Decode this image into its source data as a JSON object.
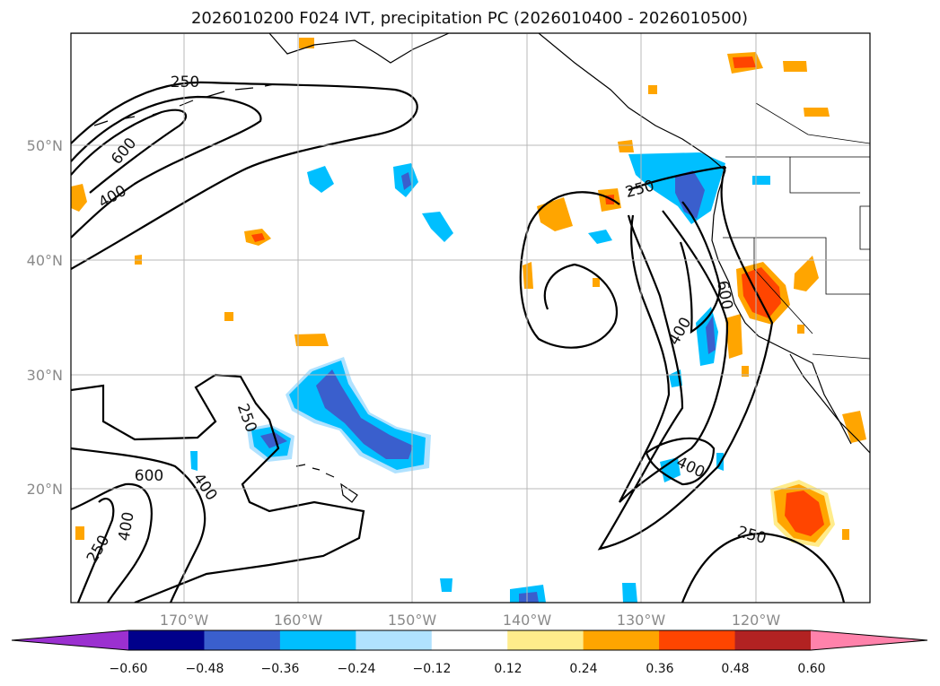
{
  "title": "2026010200 F024 IVT, precipitation PC (2026010400 - 2026010500)",
  "map": {
    "longitude_labels": [
      "170°W",
      "160°W",
      "150°W",
      "140°W",
      "130°W",
      "120°W"
    ],
    "latitude_labels": [
      "50°N",
      "40°N",
      "30°N",
      "20°N"
    ],
    "ivt_contour_labels": [
      "250",
      "600",
      "400",
      "250",
      "250",
      "600",
      "400",
      "250",
      "400",
      "400",
      "600",
      "400",
      "250"
    ]
  },
  "colorbar": {
    "ticks": [
      "−0.60",
      "−0.48",
      "−0.36",
      "−0.24",
      "−0.12",
      "0.12",
      "0.24",
      "0.36",
      "0.48",
      "0.60"
    ],
    "levels": [
      -0.6,
      -0.48,
      -0.36,
      -0.24,
      -0.12,
      0.12,
      0.24,
      0.36,
      0.48,
      0.6
    ],
    "colors": [
      "#9b30d0",
      "#00008b",
      "#3a5fcd",
      "#00bfff",
      "#b0e2ff",
      "#ffffff",
      "#ffec8b",
      "#ffa500",
      "#ff4500",
      "#b22222",
      "#ff82ab"
    ]
  },
  "colors": {
    "neg_weak": "#b0e2ff",
    "neg_mid": "#00bfff",
    "neg_strong": "#3a5fcd",
    "pos_weak": "#ffec8b",
    "pos_mid": "#ffa500",
    "pos_strong": "#ff4500"
  }
}
